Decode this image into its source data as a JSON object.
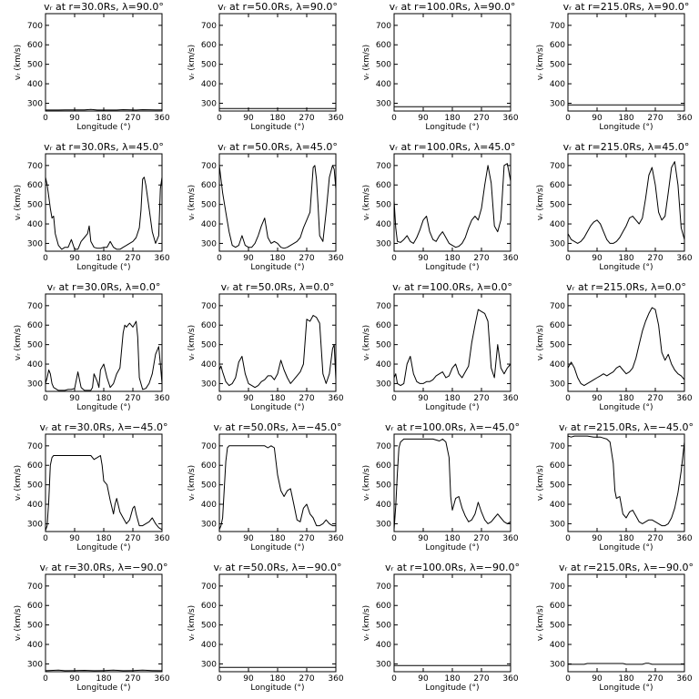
{
  "chart_data": {
    "type": "line",
    "layout": "5x4 small-multiples",
    "xlabel": "Longitude (°)",
    "ylabel": "vᵣ (km/s)",
    "xlim": [
      0,
      360
    ],
    "ylim": [
      260,
      760
    ],
    "xticks": [
      0,
      90,
      180,
      270,
      360
    ],
    "yticks": [
      300,
      400,
      500,
      600,
      700
    ],
    "grid": false,
    "line_color": "#000000",
    "panels": [
      {
        "title": "vᵣ at r=30.0Rs, λ=90.0°",
        "x": [
          0,
          40,
          60,
          120,
          140,
          160,
          220,
          240,
          280,
          300,
          340,
          360
        ],
        "y": [
          265,
          265,
          266,
          266,
          268,
          265,
          265,
          267,
          265,
          267,
          266,
          266
        ]
      },
      {
        "title": "vᵣ at r=50.0Rs, λ=90.0°",
        "x": [
          0,
          360
        ],
        "y": [
          273,
          273
        ]
      },
      {
        "title": "vᵣ at r=100.0Rs, λ=90.0°",
        "x": [
          0,
          360
        ],
        "y": [
          282,
          282
        ]
      },
      {
        "title": "vᵣ at r=215.0Rs, λ=90.0°",
        "x": [
          0,
          360
        ],
        "y": [
          292,
          292
        ]
      },
      {
        "title": "vᵣ at r=30.0Rs, λ=45.0°",
        "x": [
          0,
          5,
          10,
          15,
          20,
          25,
          30,
          40,
          50,
          60,
          70,
          80,
          90,
          100,
          110,
          120,
          130,
          135,
          140,
          150,
          160,
          170,
          180,
          190,
          200,
          210,
          220,
          230,
          240,
          250,
          260,
          270,
          280,
          290,
          295,
          300,
          305,
          310,
          320,
          330,
          340,
          350,
          355,
          360
        ],
        "y": [
          640,
          600,
          540,
          480,
          430,
          440,
          350,
          290,
          270,
          280,
          280,
          320,
          270,
          270,
          310,
          330,
          350,
          390,
          310,
          280,
          275,
          275,
          280,
          280,
          310,
          280,
          270,
          270,
          280,
          290,
          300,
          310,
          330,
          380,
          470,
          630,
          640,
          600,
          480,
          360,
          300,
          340,
          580,
          640
        ]
      },
      {
        "title": "vᵣ at r=50.0Rs, λ=45.0°",
        "x": [
          0,
          5,
          10,
          20,
          30,
          40,
          50,
          60,
          70,
          80,
          90,
          100,
          110,
          120,
          130,
          140,
          150,
          160,
          170,
          180,
          190,
          200,
          210,
          220,
          230,
          240,
          250,
          260,
          270,
          280,
          290,
          295,
          300,
          305,
          310,
          320,
          330,
          340,
          350,
          355,
          360
        ],
        "y": [
          700,
          630,
          560,
          460,
          360,
          290,
          280,
          290,
          340,
          290,
          280,
          280,
          300,
          340,
          390,
          430,
          330,
          300,
          310,
          300,
          280,
          275,
          280,
          290,
          300,
          310,
          330,
          380,
          420,
          460,
          690,
          700,
          630,
          500,
          340,
          310,
          460,
          640,
          700,
          680,
          580
        ]
      },
      {
        "title": "vᵣ at r=100.0Rs, λ=45.0°",
        "x": [
          0,
          5,
          10,
          20,
          30,
          40,
          50,
          60,
          70,
          80,
          90,
          100,
          110,
          120,
          130,
          140,
          150,
          160,
          170,
          180,
          190,
          200,
          210,
          220,
          230,
          240,
          250,
          260,
          270,
          280,
          290,
          300,
          310,
          320,
          330,
          340,
          350,
          360
        ],
        "y": [
          520,
          380,
          310,
          305,
          320,
          340,
          310,
          300,
          330,
          370,
          420,
          440,
          360,
          320,
          310,
          340,
          360,
          330,
          300,
          290,
          280,
          285,
          300,
          330,
          380,
          420,
          440,
          420,
          480,
          600,
          700,
          610,
          390,
          360,
          420,
          700,
          710,
          620
        ]
      },
      {
        "title": "vᵣ at r=215.0Rs, λ=45.0°",
        "x": [
          0,
          10,
          20,
          30,
          40,
          50,
          60,
          70,
          80,
          90,
          100,
          110,
          120,
          130,
          140,
          150,
          160,
          170,
          180,
          190,
          200,
          210,
          220,
          230,
          240,
          250,
          260,
          270,
          280,
          290,
          300,
          310,
          320,
          330,
          340,
          350,
          360
        ],
        "y": [
          350,
          320,
          310,
          300,
          310,
          330,
          360,
          390,
          410,
          420,
          400,
          360,
          320,
          300,
          300,
          310,
          330,
          360,
          390,
          430,
          440,
          420,
          400,
          430,
          530,
          650,
          690,
          600,
          460,
          420,
          440,
          560,
          690,
          720,
          600,
          380,
          320
        ]
      },
      {
        "title": "vᵣ at r=30.0Rs, λ=0.0°",
        "x": [
          0,
          5,
          10,
          15,
          20,
          25,
          30,
          40,
          50,
          60,
          70,
          80,
          90,
          100,
          110,
          120,
          130,
          140,
          145,
          150,
          160,
          165,
          170,
          180,
          190,
          200,
          210,
          220,
          230,
          240,
          245,
          250,
          260,
          270,
          280,
          285,
          290,
          300,
          310,
          320,
          330,
          340,
          350,
          355,
          360
        ],
        "y": [
          300,
          330,
          370,
          350,
          300,
          280,
          275,
          265,
          265,
          265,
          270,
          270,
          275,
          360,
          280,
          265,
          265,
          265,
          280,
          350,
          310,
          280,
          370,
          400,
          330,
          280,
          300,
          350,
          380,
          560,
          600,
          590,
          610,
          590,
          620,
          540,
          330,
          270,
          275,
          300,
          350,
          450,
          490,
          400,
          300
        ]
      },
      {
        "title": "vᵣ at r=50.0Rs, λ=0.0°",
        "x": [
          0,
          5,
          10,
          20,
          30,
          40,
          50,
          60,
          70,
          80,
          90,
          100,
          110,
          120,
          130,
          140,
          150,
          160,
          170,
          180,
          190,
          200,
          210,
          220,
          230,
          240,
          250,
          260,
          270,
          280,
          290,
          300,
          310,
          320,
          330,
          340,
          350,
          355,
          360
        ],
        "y": [
          370,
          390,
          360,
          310,
          290,
          300,
          330,
          410,
          440,
          350,
          300,
          290,
          280,
          290,
          310,
          320,
          340,
          340,
          320,
          350,
          420,
          370,
          330,
          300,
          320,
          340,
          360,
          400,
          630,
          620,
          650,
          640,
          610,
          350,
          300,
          350,
          480,
          500,
          320
        ]
      },
      {
        "title": "vᵣ at r=100.0Rs, λ=0.0°",
        "x": [
          0,
          5,
          10,
          20,
          30,
          40,
          50,
          60,
          70,
          80,
          90,
          100,
          110,
          120,
          130,
          140,
          150,
          160,
          170,
          180,
          190,
          200,
          210,
          220,
          230,
          240,
          250,
          260,
          270,
          280,
          290,
          300,
          310,
          320,
          330,
          340,
          350,
          360
        ],
        "y": [
          330,
          350,
          300,
          290,
          300,
          400,
          440,
          350,
          310,
          300,
          300,
          310,
          310,
          320,
          340,
          350,
          360,
          330,
          340,
          380,
          400,
          350,
          330,
          360,
          390,
          510,
          600,
          680,
          670,
          660,
          620,
          380,
          330,
          500,
          380,
          350,
          380,
          400
        ]
      },
      {
        "title": "vᵣ at r=215.0Rs, λ=0.0°",
        "x": [
          0,
          10,
          20,
          30,
          40,
          50,
          60,
          70,
          80,
          90,
          100,
          110,
          120,
          130,
          140,
          150,
          160,
          170,
          180,
          190,
          200,
          210,
          220,
          230,
          240,
          250,
          260,
          270,
          280,
          290,
          300,
          310,
          320,
          330,
          340,
          350,
          360
        ],
        "y": [
          380,
          410,
          380,
          330,
          300,
          290,
          300,
          310,
          320,
          330,
          340,
          350,
          340,
          350,
          360,
          380,
          390,
          370,
          350,
          360,
          380,
          430,
          500,
          570,
          620,
          660,
          690,
          680,
          600,
          460,
          420,
          450,
          400,
          370,
          350,
          340,
          320
        ]
      },
      {
        "title": "vᵣ at r=30.0Rs, λ=−45.0°",
        "x": [
          0,
          5,
          10,
          15,
          20,
          25,
          30,
          40,
          60,
          80,
          100,
          120,
          140,
          150,
          160,
          170,
          175,
          180,
          190,
          200,
          210,
          215,
          220,
          230,
          240,
          250,
          260,
          270,
          275,
          280,
          290,
          300,
          310,
          320,
          330,
          340,
          350,
          360
        ],
        "y": [
          265,
          290,
          420,
          600,
          640,
          650,
          650,
          650,
          650,
          650,
          650,
          650,
          650,
          630,
          640,
          650,
          600,
          520,
          500,
          420,
          350,
          400,
          430,
          360,
          330,
          300,
          320,
          380,
          390,
          350,
          290,
          290,
          300,
          310,
          330,
          300,
          280,
          270
        ]
      },
      {
        "title": "vᵣ at r=50.0Rs, λ=−45.0°",
        "x": [
          0,
          5,
          10,
          20,
          25,
          30,
          40,
          60,
          80,
          100,
          120,
          140,
          150,
          160,
          170,
          180,
          190,
          200,
          210,
          220,
          230,
          240,
          250,
          260,
          270,
          280,
          290,
          300,
          310,
          320,
          330,
          340,
          350,
          360
        ],
        "y": [
          270,
          290,
          330,
          620,
          690,
          700,
          700,
          700,
          700,
          700,
          700,
          700,
          690,
          700,
          690,
          550,
          470,
          440,
          470,
          480,
          400,
          320,
          310,
          380,
          400,
          350,
          330,
          290,
          290,
          300,
          320,
          300,
          290,
          290
        ]
      },
      {
        "title": "vᵣ at r=100.0Rs, λ=−45.0°",
        "x": [
          0,
          5,
          10,
          15,
          20,
          30,
          40,
          60,
          80,
          100,
          120,
          140,
          150,
          160,
          170,
          175,
          180,
          190,
          200,
          210,
          220,
          230,
          240,
          250,
          260,
          270,
          280,
          290,
          300,
          310,
          320,
          330,
          340,
          350,
          360
        ],
        "y": [
          270,
          390,
          560,
          690,
          720,
          735,
          735,
          735,
          735,
          735,
          735,
          725,
          735,
          720,
          640,
          440,
          370,
          430,
          440,
          380,
          340,
          310,
          320,
          350,
          410,
          360,
          320,
          300,
          310,
          330,
          350,
          330,
          310,
          300,
          310
        ]
      },
      {
        "title": "vᵣ at r=215.0Rs, λ=−45.0°",
        "x": [
          0,
          10,
          20,
          40,
          60,
          80,
          100,
          110,
          120,
          130,
          140,
          145,
          150,
          160,
          170,
          180,
          190,
          200,
          210,
          220,
          230,
          240,
          250,
          260,
          270,
          280,
          290,
          300,
          310,
          320,
          330,
          340,
          350,
          360
        ],
        "y": [
          750,
          745,
          750,
          750,
          750,
          745,
          745,
          740,
          735,
          720,
          610,
          470,
          430,
          440,
          350,
          330,
          360,
          370,
          340,
          310,
          300,
          310,
          320,
          320,
          310,
          300,
          290,
          290,
          300,
          330,
          380,
          460,
          570,
          720
        ]
      },
      {
        "title": "vᵣ at r=30.0Rs, λ=−90.0°",
        "x": [
          0,
          40,
          60,
          90,
          120,
          150,
          180,
          210,
          240,
          270,
          300,
          330,
          360
        ],
        "y": [
          265,
          268,
          265,
          266,
          267,
          265,
          266,
          268,
          265,
          266,
          268,
          266,
          265
        ]
      },
      {
        "title": "vᵣ at r=50.0Rs, λ=−90.0°",
        "x": [
          0,
          360
        ],
        "y": [
          282,
          282
        ]
      },
      {
        "title": "vᵣ at r=100.0Rs, λ=−90.0°",
        "x": [
          0,
          360
        ],
        "y": [
          292,
          292
        ]
      },
      {
        "title": "vᵣ at r=215.0Rs, λ=−90.0°",
        "x": [
          0,
          50,
          60,
          170,
          180,
          230,
          240,
          250,
          260,
          360
        ],
        "y": [
          298,
          298,
          302,
          302,
          298,
          298,
          303,
          303,
          298,
          298
        ]
      }
    ]
  }
}
